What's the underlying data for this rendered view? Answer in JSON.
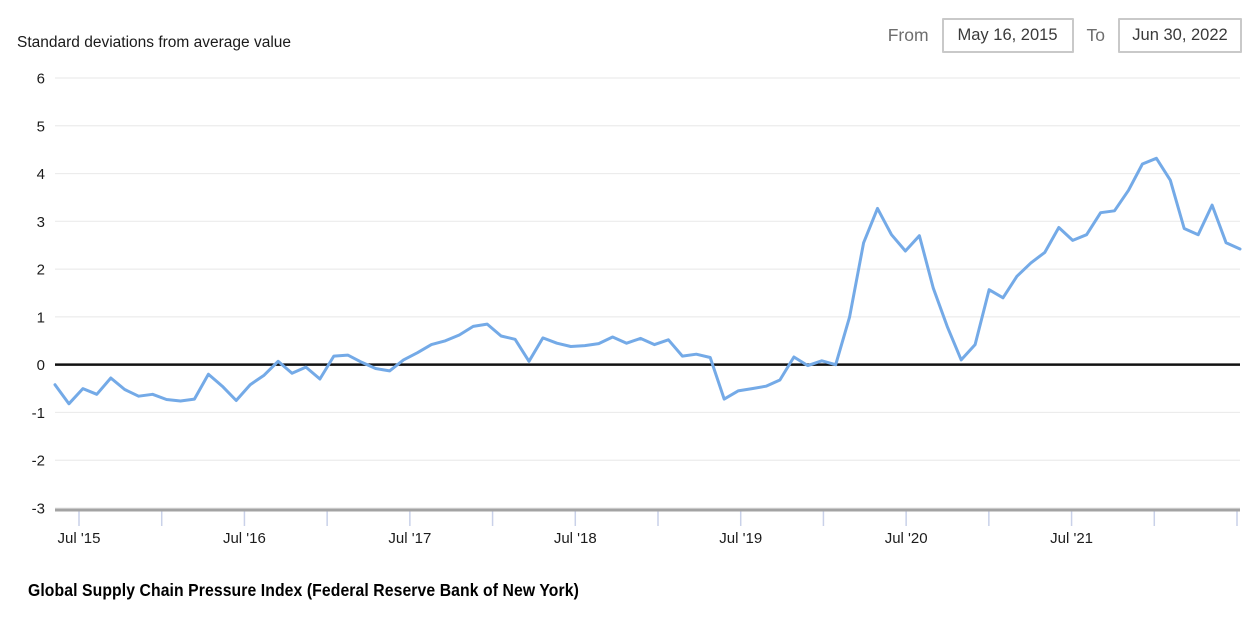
{
  "y_axis_title": "Standard deviations from average value",
  "date_range": {
    "from_label": "From",
    "from_value": "May 16, 2015",
    "to_label": "To",
    "to_value": "Jun 30, 2022"
  },
  "caption": "Global Supply Chain Pressure Index (Federal Reserve Bank of New York)",
  "colors": {
    "line": "#74aae7",
    "zero_line": "#111111",
    "grid": "#ececec",
    "axis": "#a3a3a3",
    "x_tick": "#c9d1e9",
    "tick_text": "#1c1c1c"
  },
  "chart_data": {
    "type": "line",
    "title": "Global Supply Chain Pressure Index (Federal Reserve Bank of New York)",
    "ylabel": "Standard deviations from average value",
    "x_start": "May 2015",
    "x_end": "Jun 2022",
    "frequency": "monthly",
    "ylim": [
      -3,
      6
    ],
    "grid": true,
    "zero_line": true,
    "yticks": [
      6,
      5,
      4,
      3,
      2,
      1,
      0,
      -1,
      -2,
      -3
    ],
    "ytick_labels": [
      "6",
      "5",
      "4",
      "3",
      "2",
      "1",
      "0",
      "-1",
      "-2",
      "-3"
    ],
    "xtick_labels": [
      "Jul '15",
      "Jul '16",
      "Jul '17",
      "Jul '18",
      "Jul '19",
      "Jul '20",
      "Jul '21"
    ],
    "series": [
      {
        "name": "Global Supply Chain Pressure Index",
        "values": [
          -0.42,
          -0.82,
          -0.5,
          -0.62,
          -0.28,
          -0.52,
          -0.66,
          -0.62,
          -0.73,
          -0.76,
          -0.72,
          -0.2,
          -0.45,
          -0.75,
          -0.42,
          -0.22,
          0.07,
          -0.18,
          -0.05,
          -0.3,
          0.18,
          0.2,
          0.05,
          -0.08,
          -0.13,
          0.1,
          0.25,
          0.42,
          0.5,
          0.62,
          0.8,
          0.85,
          0.6,
          0.53,
          0.07,
          0.56,
          0.45,
          0.38,
          0.4,
          0.44,
          0.58,
          0.45,
          0.55,
          0.42,
          0.52,
          0.18,
          0.22,
          0.15,
          -0.72,
          -0.55,
          -0.5,
          -0.45,
          -0.32,
          0.16,
          -0.02,
          0.08,
          0.0,
          1.0,
          2.55,
          3.27,
          2.72,
          2.38,
          2.7,
          1.6,
          0.8,
          0.1,
          0.42,
          1.57,
          1.4,
          1.85,
          2.13,
          2.35,
          2.87,
          2.6,
          2.72,
          3.18,
          3.22,
          3.65,
          4.2,
          4.32,
          3.86,
          2.85,
          2.72,
          3.34,
          2.55,
          2.42
        ]
      }
    ]
  }
}
